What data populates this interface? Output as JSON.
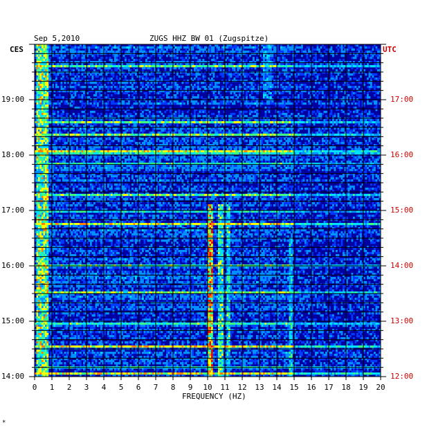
{
  "header": {
    "date": "Sep 5,2010",
    "station": "ZUGS HHZ BW 01 (Zugspitze)"
  },
  "left_zone_label": "CES",
  "right_zone_label": "UTC",
  "footer_mark": "*",
  "chart_data": {
    "type": "heatmap",
    "title": "ZUGS HHZ BW 01 (Zugspitze)",
    "date": "Sep 5,2010",
    "xlabel": "FREQUENCY (HZ)",
    "xlim": [
      0,
      20
    ],
    "x_ticks": [
      "0",
      "1",
      "2",
      "3",
      "4",
      "5",
      "6",
      "7",
      "8",
      "9",
      "10",
      "11",
      "12",
      "13",
      "14",
      "15",
      "16",
      "17",
      "18",
      "19",
      "20"
    ],
    "left_axis": {
      "timezone": "CES",
      "ticks": [
        "14:00",
        "15:00",
        "16:00",
        "17:00",
        "18:00",
        "19:00"
      ],
      "range_hours": [
        14.0,
        20.0
      ]
    },
    "right_axis": {
      "timezone": "UTC",
      "ticks": [
        "12:00",
        "13:00",
        "14:00",
        "15:00",
        "16:00",
        "17:00"
      ],
      "range_hours": [
        12.0,
        18.0
      ]
    },
    "colormap": [
      "#0000a0",
      "#0010d8",
      "#0038ff",
      "#0090ff",
      "#00e0ff",
      "#40ff80",
      "#ffff00",
      "#ff8000",
      "#ff0000"
    ],
    "features": [
      {
        "label": "low-frequency band",
        "freq_hz": [
          0.1,
          0.8
        ],
        "intensity": 0.7
      },
      {
        "label": "10 Hz line",
        "freq_hz": [
          10.0,
          10.3
        ],
        "time_hours": [
          14.0,
          17.1
        ],
        "intensity": 0.85
      },
      {
        "label": "10.7 Hz line",
        "freq_hz": [
          10.6,
          10.9
        ],
        "time_hours": [
          14.0,
          17.1
        ],
        "intensity": 0.65
      },
      {
        "label": "11.2 Hz line",
        "freq_hz": [
          11.1,
          11.3
        ],
        "time_hours": [
          14.0,
          17.1
        ],
        "intensity": 0.6
      },
      {
        "label": "14.8 Hz line",
        "freq_hz": [
          14.7,
          14.9
        ],
        "time_hours": [
          14.0,
          16.5
        ],
        "intensity": 0.55
      },
      {
        "label": "13.5 Hz patch",
        "freq_hz": [
          13.2,
          13.7
        ],
        "time_hours": [
          19.0,
          20.0
        ],
        "intensity": 0.45
      }
    ]
  }
}
